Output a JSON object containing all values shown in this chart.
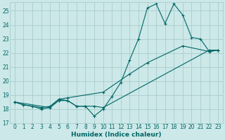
{
  "xlabel": "Humidex (Indice chaleur)",
  "bg_color": "#cce8e8",
  "grid_color": "#aacccc",
  "line_color": "#006666",
  "ylim": [
    17,
    25.6
  ],
  "xlim": [
    -0.5,
    23.5
  ],
  "yticks": [
    17,
    18,
    19,
    20,
    21,
    22,
    23,
    24,
    25
  ],
  "xticks": [
    0,
    1,
    2,
    3,
    4,
    5,
    6,
    7,
    8,
    9,
    10,
    11,
    12,
    13,
    14,
    15,
    16,
    17,
    18,
    19,
    20,
    21,
    22,
    23
  ],
  "series1_x": [
    0,
    1,
    2,
    3,
    4,
    5,
    6,
    7,
    8,
    9,
    10,
    11,
    12,
    13,
    14,
    15,
    16,
    17,
    18,
    19,
    20,
    21,
    22,
    23
  ],
  "series1_y": [
    18.5,
    18.3,
    18.2,
    18.0,
    18.1,
    18.6,
    18.6,
    18.2,
    18.2,
    17.5,
    18.0,
    18.9,
    19.9,
    21.5,
    23.0,
    25.2,
    25.5,
    24.1,
    25.5,
    24.7,
    23.1,
    23.0,
    22.1,
    22.2
  ],
  "series2_x": [
    0,
    1,
    2,
    3,
    4,
    5,
    6,
    7,
    8,
    9,
    10,
    22,
    23
  ],
  "series2_y": [
    18.5,
    18.3,
    18.2,
    18.1,
    18.2,
    18.7,
    18.6,
    18.2,
    18.2,
    18.2,
    18.1,
    22.2,
    22.2
  ],
  "series3_x": [
    0,
    4,
    5,
    6,
    10,
    13,
    15,
    19,
    22,
    23
  ],
  "series3_y": [
    18.5,
    18.1,
    18.7,
    18.8,
    19.2,
    20.5,
    21.3,
    22.5,
    22.1,
    22.2
  ]
}
